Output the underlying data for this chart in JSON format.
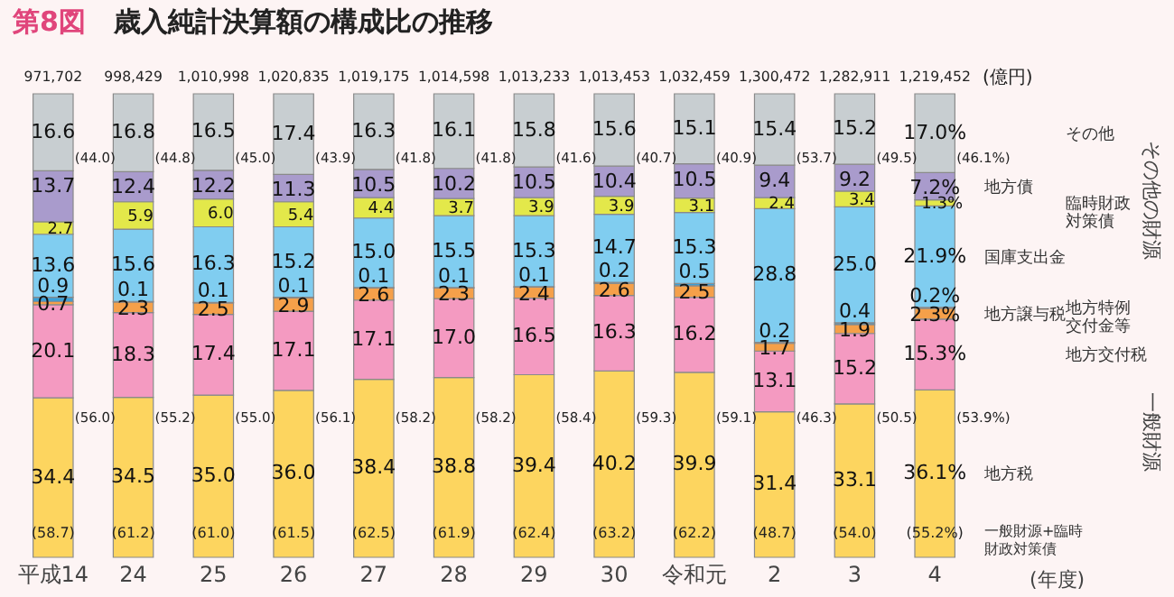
{
  "chart_data": {
    "type": "bar",
    "stacked": true,
    "title": "歳入純計決算額の構成比の推移",
    "xlabel": "(年度)",
    "legend": false,
    "tick_labels": "x",
    "ylim": [
      0,
      100
    ],
    "categories": [
      "平成14",
      "24",
      "25",
      "26",
      "27",
      "28",
      "29",
      "30",
      "令和元",
      "2",
      "3",
      "4"
    ],
    "series": [
      {
        "name": "地方税",
        "color": "#fdd55f",
        "values": [
          34.4,
          34.5,
          35.0,
          36.0,
          38.4,
          38.8,
          39.4,
          40.2,
          39.9,
          31.4,
          33.1,
          36.1
        ],
        "value_labels": [
          "34.4",
          "34.5",
          "35.0",
          "36.0",
          "38.4",
          "38.8",
          "39.4",
          "40.2",
          "39.9",
          "31.4",
          "33.1",
          "36.1%"
        ]
      },
      {
        "name": "地方交付税",
        "color": "#f49ac1",
        "values": [
          20.1,
          18.3,
          17.4,
          17.1,
          17.1,
          17.0,
          16.5,
          16.3,
          16.2,
          13.1,
          15.2,
          15.3
        ],
        "value_labels": [
          "20.1",
          "18.3",
          "17.4",
          "17.1",
          "17.1",
          "17.0",
          "16.5",
          "16.3",
          "16.2",
          "13.1",
          "15.2",
          "15.3%"
        ]
      },
      {
        "name": "地方譲与税",
        "color": "#f5a04a",
        "values": [
          0.7,
          2.3,
          2.5,
          2.9,
          2.6,
          2.3,
          2.4,
          2.6,
          2.5,
          1.7,
          1.9,
          2.3
        ],
        "value_labels": [
          "0.7",
          "2.3",
          "2.5",
          "2.9",
          "2.6",
          "2.3",
          "2.4",
          "2.6",
          "2.5",
          "1.7",
          "1.9",
          "2.3%"
        ]
      },
      {
        "name": "地方特例交付金等",
        "color": "#3a9fd6",
        "values": [
          0.9,
          0.1,
          0.1,
          0.1,
          0.1,
          0.1,
          0.1,
          0.2,
          0.5,
          0.2,
          0.4,
          0.2
        ],
        "value_labels": [
          "0.9",
          "0.1",
          "0.1",
          "0.1",
          "0.1",
          "0.1",
          "0.1",
          "0.2",
          "0.5",
          "0.2",
          "0.4",
          "0.2%"
        ]
      },
      {
        "name": "国庫支出金",
        "color": "#80cdf0",
        "values": [
          13.6,
          15.6,
          16.3,
          15.2,
          15.0,
          15.5,
          15.3,
          14.7,
          15.3,
          28.8,
          25.0,
          21.9
        ],
        "value_labels": [
          "13.6",
          "15.6",
          "16.3",
          "15.2",
          "15.0",
          "15.5",
          "15.3",
          "14.7",
          "15.3",
          "28.8",
          "25.0",
          "21.9%"
        ]
      },
      {
        "name": "臨時財政対策債",
        "color": "#e3e84a",
        "values": [
          2.7,
          5.9,
          6.0,
          5.4,
          4.4,
          3.7,
          3.9,
          3.9,
          3.1,
          2.4,
          3.4,
          1.3
        ],
        "value_labels": [
          "2.7",
          "5.9",
          "6.0",
          "5.4",
          "4.4",
          "3.7",
          "3.9",
          "3.9",
          "3.1",
          "2.4",
          "3.4",
          "1.3%"
        ]
      },
      {
        "name": "地方債",
        "color": "#a99bcc",
        "values": [
          11.0,
          6.5,
          6.2,
          5.9,
          6.1,
          6.5,
          6.6,
          6.5,
          7.4,
          7.0,
          5.8,
          5.9
        ]
      },
      {
        "name": "その他",
        "color": "#c8ced1",
        "values": [
          16.6,
          16.8,
          16.5,
          17.4,
          16.3,
          16.1,
          15.8,
          15.6,
          15.1,
          15.4,
          15.2,
          17.0
        ],
        "value_labels": [
          "16.6",
          "16.8",
          "16.5",
          "17.4",
          "16.3",
          "16.1",
          "15.8",
          "15.6",
          "15.1",
          "15.4",
          "15.2",
          "17.0%"
        ]
      }
    ],
    "annotations": [
      "第8図",
      "(億円)",
      "その他の財源",
      "一般財源",
      "一般財源+臨時財政対策債",
      "971,702",
      "998,429",
      "1,010,998",
      "1,020,835",
      "1,019,175",
      "1,014,598",
      "1,013,233",
      "1,013,453",
      "1,032,459",
      "1,300,472",
      "1,282,911",
      "1,219,452",
      "13.7",
      "12.4",
      "12.2",
      "11.3",
      "10.5",
      "10.2",
      "10.5",
      "10.4",
      "10.5",
      "9.4",
      "9.2",
      "7.2%",
      "(44.0)",
      "(56.0)",
      "(58.7)",
      "(44.8)",
      "(55.2)",
      "(61.2)",
      "(45.0)",
      "(55.0)",
      "(61.0)",
      "(43.9)",
      "(56.1)",
      "(61.5)",
      "(41.8)",
      "(58.2)",
      "(62.5)",
      "(41.8)",
      "(58.2)",
      "(61.9)",
      "(41.6)",
      "(58.4)",
      "(62.4)",
      "(40.7)",
      "(59.3)",
      "(63.2)",
      "(40.9)",
      "(59.1)",
      "(62.2)",
      "(53.7)",
      "(46.3)",
      "(48.7)",
      "(49.5)",
      "(50.5)",
      "(54.0)",
      "(46.1%)",
      "(53.9%)",
      "(55.2%)"
    ]
  }
}
